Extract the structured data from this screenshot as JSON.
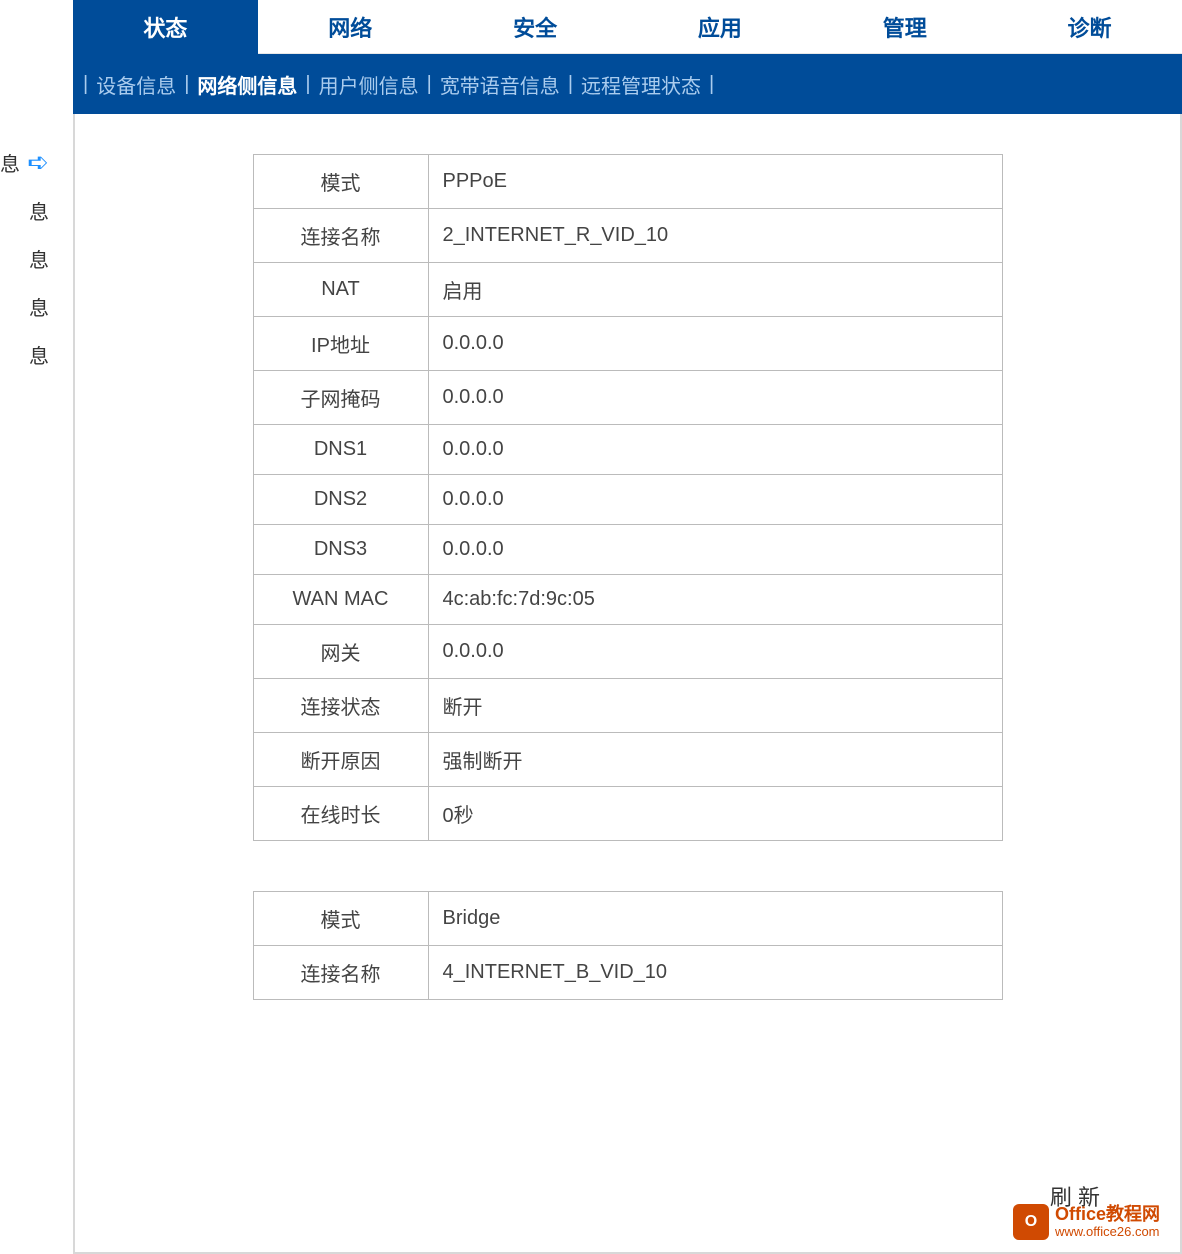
{
  "colors": {
    "primary": "#004c99",
    "tab_text": "#004c99",
    "subnav_inactive": "#aaccee",
    "border": "#bbbbbb",
    "text": "#444444",
    "watermark": "#d04a02"
  },
  "main_tabs": [
    {
      "label": "状态",
      "active": true
    },
    {
      "label": "网络",
      "active": false
    },
    {
      "label": "安全",
      "active": false
    },
    {
      "label": "应用",
      "active": false
    },
    {
      "label": "管理",
      "active": false
    },
    {
      "label": "诊断",
      "active": false
    }
  ],
  "sub_nav": [
    {
      "label": "设备信息",
      "active": false
    },
    {
      "label": "网络侧信息",
      "active": true
    },
    {
      "label": "用户侧信息",
      "active": false
    },
    {
      "label": "宽带语音信息",
      "active": false
    },
    {
      "label": "远程管理状态",
      "active": false
    }
  ],
  "sidebar_items": [
    {
      "label": "息",
      "selected": true
    },
    {
      "label": "息",
      "selected": false
    },
    {
      "label": "息",
      "selected": false
    },
    {
      "label": "息",
      "selected": false
    },
    {
      "label": "息",
      "selected": false
    }
  ],
  "table1": {
    "rows": [
      {
        "label": "模式",
        "value": "PPPoE"
      },
      {
        "label": "连接名称",
        "value": "2_INTERNET_R_VID_10"
      },
      {
        "label": "NAT",
        "value": "启用"
      },
      {
        "label": "IP地址",
        "value": "0.0.0.0"
      },
      {
        "label": "子网掩码",
        "value": "0.0.0.0"
      },
      {
        "label": "DNS1",
        "value": "0.0.0.0"
      },
      {
        "label": "DNS2",
        "value": "0.0.0.0"
      },
      {
        "label": "DNS3",
        "value": "0.0.0.0"
      },
      {
        "label": "WAN MAC",
        "value": "4c:ab:fc:7d:9c:05"
      },
      {
        "label": "网关",
        "value": "0.0.0.0"
      },
      {
        "label": "连接状态",
        "value": "断开"
      },
      {
        "label": "断开原因",
        "value": "强制断开"
      },
      {
        "label": "在线时长",
        "value": "0秒"
      }
    ]
  },
  "table2": {
    "rows": [
      {
        "label": "模式",
        "value": "Bridge"
      },
      {
        "label": "连接名称",
        "value": "4_INTERNET_B_VID_10"
      }
    ]
  },
  "refresh_label": "刷 新",
  "watermark": {
    "icon_text": "O",
    "cn": "Office教程网",
    "url": "www.office26.com"
  }
}
